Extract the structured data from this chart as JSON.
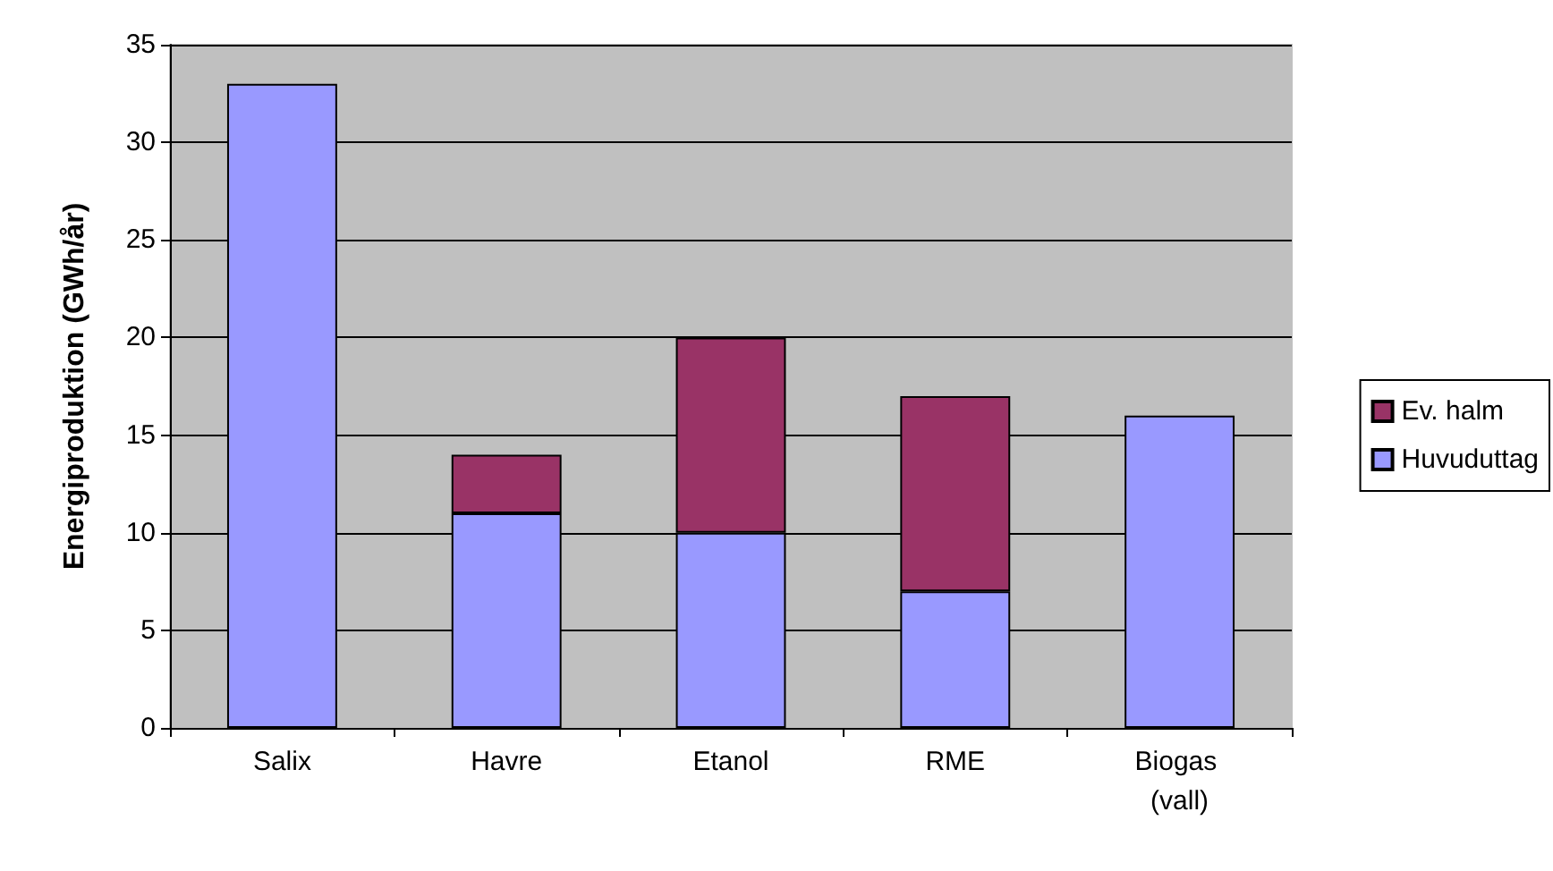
{
  "chart_data": {
    "type": "bar",
    "ylabel": "Energiproduktion (GWh/år)",
    "categories": [
      "Salix",
      "Havre",
      "Etanol",
      "RME",
      "Biogas (vall)"
    ],
    "stacked": true,
    "series": [
      {
        "name": "Huvuduttag",
        "color": "#9999ff",
        "values": [
          33,
          11,
          10,
          7,
          16
        ]
      },
      {
        "name": "Ev. halm",
        "color": "#993366",
        "values": [
          null,
          3,
          10,
          10,
          null
        ]
      }
    ],
    "ylim": [
      0,
      35
    ],
    "yticks": [
      0,
      5,
      10,
      15,
      20,
      25,
      30,
      35
    ],
    "grid": "y",
    "legend": "right"
  }
}
